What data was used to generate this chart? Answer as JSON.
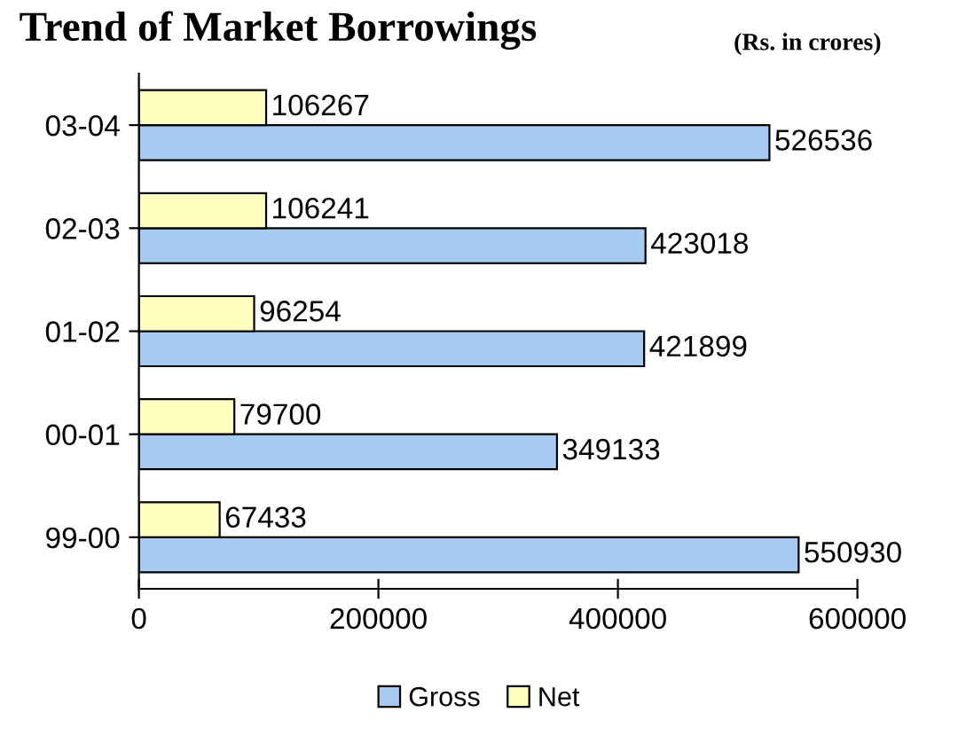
{
  "chart_data": {
    "type": "bar",
    "orientation": "horizontal",
    "title": "Trend of Market Borrowings",
    "subtitle": "(Rs. in crores)",
    "categories": [
      "03-04",
      "02-03",
      "01-02",
      "00-01",
      "99-00"
    ],
    "series": [
      {
        "name": "Gross",
        "color": "#a6caf0",
        "values": [
          526536,
          423018,
          421899,
          349133,
          550930
        ]
      },
      {
        "name": "Net",
        "color": "#ffffc0",
        "values": [
          106267,
          106241,
          96254,
          79700,
          67433
        ]
      }
    ],
    "xlim": [
      0,
      600000
    ],
    "xticks": [
      0,
      200000,
      400000,
      600000
    ],
    "grid": false,
    "legend": "bottom",
    "data_labels": true
  }
}
